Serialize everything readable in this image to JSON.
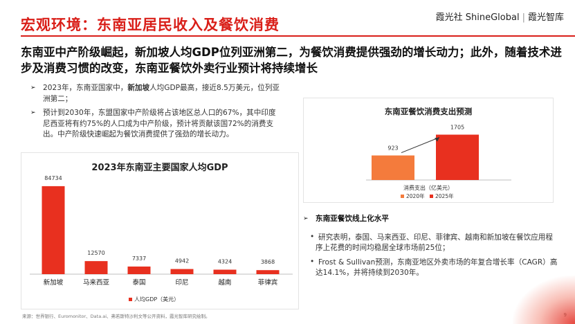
{
  "header": {
    "title": "宏观环境：东南亚居民收入及餐饮消费",
    "brand_left": "霞光社 ShineGlobal",
    "brand_sep": "|",
    "brand_right": "霞光智库"
  },
  "headline": "东南亚中产阶级崛起，新加坡人均GDP位列亚洲第二，为餐饮消费提供强劲的增长动力；此外，随着技术进步及消费习惯的改变，东南亚餐饮外卖行业预计将持续增长",
  "left_bullets": [
    {
      "pre": "2023年，东南亚国家中，",
      "bold": "新加坡",
      "post": "人均GDP最高，接近8.5万美元，位列亚洲第二；"
    },
    {
      "pre": "预计到2030年，东盟国家中产阶级将占该地区总人口的67%，其中印度尼西亚将有约75%的人口成为中产阶级，预计将贡献该国72%的消费支出。中产阶级快速崛起为餐饮消费提供了强劲的增长动力。",
      "bold": "",
      "post": ""
    }
  ],
  "colors": {
    "accent": "#d91e18",
    "bar_red": "#e8301f",
    "bar_orange": "#f47b3c"
  },
  "chart_data": [
    {
      "type": "bar",
      "title": "2023年东南亚主要国家人均GDP",
      "categories": [
        "新加坡",
        "马来西亚",
        "泰国",
        "印尼",
        "越南",
        "菲律宾"
      ],
      "values": [
        84734,
        12570,
        7337,
        4942,
        4324,
        3868
      ],
      "legend": "人均GDP（美元）",
      "ylim": [
        0,
        90000
      ],
      "grid": false,
      "legend_position": "bottom"
    },
    {
      "type": "bar",
      "title": "东南亚餐饮消费支出预测",
      "xlabel": "消费支出（亿美元）",
      "categories": [
        "2020年",
        "2025年"
      ],
      "values": [
        923,
        1705
      ],
      "legend": [
        "2020年",
        "2025年"
      ],
      "ylim": [
        0,
        1900
      ],
      "grid": false,
      "legend_position": "bottom"
    }
  ],
  "right_section": {
    "heading": "东南亚餐饮线上化水平",
    "bullets": [
      "研究表明，泰国、马来西亚、印尼、菲律宾、越南和新加坡在餐饮应用程序上花费的时间均稳居全球市场前25位；",
      "Frost & Sullivan预测，东南亚地区外卖市场的年复合增长率（CAGR）高达14.1%，并将持续到2030年。"
    ]
  },
  "footer": {
    "source": "来源：世界银行、Euromonitor、Data.ai、弗若斯特沙利文等公开资料，霞光智库研究绘制。",
    "page": "9"
  }
}
